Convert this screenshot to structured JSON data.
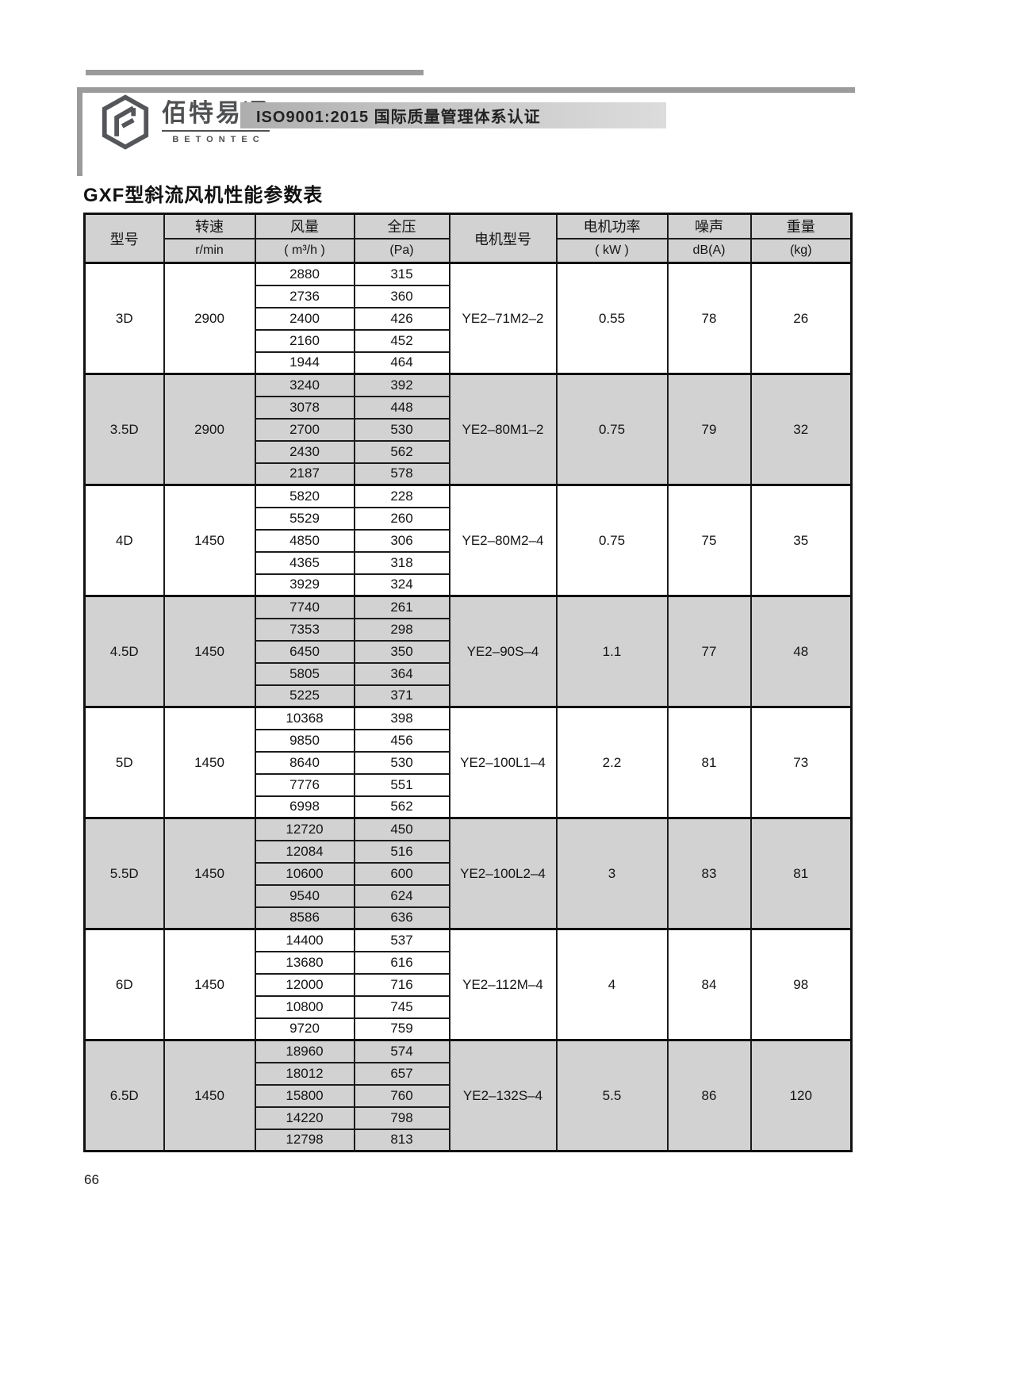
{
  "brand": {
    "name_cn": "佰特易通",
    "name_en": "BETONTEC"
  },
  "banner": {
    "text": "ISO9001:2015 国际质量管理体系认证"
  },
  "document": {
    "title": "GXF型斜流风机性能参数表",
    "page_number": "66"
  },
  "colors": {
    "band_gray": "#d2d2d2",
    "header_gray": "#d2d2d2",
    "frame_gray": "#9b9b9b",
    "logo_gray": "#4f5052"
  },
  "table": {
    "header": {
      "model": "型号",
      "speed_label": "转速",
      "speed_unit": "r/min",
      "airflow_label": "风量",
      "airflow_unit": "( m³/h )",
      "pressure_label": "全压",
      "pressure_unit": "(Pa)",
      "motor_label": "电机型号",
      "power_label": "电机功率",
      "power_unit": "( kW )",
      "noise_label": "噪声",
      "noise_unit": "dB(A)",
      "weight_label": "重量",
      "weight_unit": "(kg)"
    },
    "groups": [
      {
        "model": "3D",
        "speed": "2900",
        "motor": "YE2–71M2–2",
        "power": "0.55",
        "noise": "78",
        "weight": "26",
        "rows": [
          [
            "2880",
            "315"
          ],
          [
            "2736",
            "360"
          ],
          [
            "2400",
            "426"
          ],
          [
            "2160",
            "452"
          ],
          [
            "1944",
            "464"
          ]
        ]
      },
      {
        "model": "3.5D",
        "speed": "2900",
        "motor": "YE2–80M1–2",
        "power": "0.75",
        "noise": "79",
        "weight": "32",
        "rows": [
          [
            "3240",
            "392"
          ],
          [
            "3078",
            "448"
          ],
          [
            "2700",
            "530"
          ],
          [
            "2430",
            "562"
          ],
          [
            "2187",
            "578"
          ]
        ]
      },
      {
        "model": "4D",
        "speed": "1450",
        "motor": "YE2–80M2–4",
        "power": "0.75",
        "noise": "75",
        "weight": "35",
        "rows": [
          [
            "5820",
            "228"
          ],
          [
            "5529",
            "260"
          ],
          [
            "4850",
            "306"
          ],
          [
            "4365",
            "318"
          ],
          [
            "3929",
            "324"
          ]
        ]
      },
      {
        "model": "4.5D",
        "speed": "1450",
        "motor": "YE2–90S–4",
        "power": "1.1",
        "noise": "77",
        "weight": "48",
        "rows": [
          [
            "7740",
            "261"
          ],
          [
            "7353",
            "298"
          ],
          [
            "6450",
            "350"
          ],
          [
            "5805",
            "364"
          ],
          [
            "5225",
            "371"
          ]
        ]
      },
      {
        "model": "5D",
        "speed": "1450",
        "motor": "YE2–100L1–4",
        "power": "2.2",
        "noise": "81",
        "weight": "73",
        "rows": [
          [
            "10368",
            "398"
          ],
          [
            "9850",
            "456"
          ],
          [
            "8640",
            "530"
          ],
          [
            "7776",
            "551"
          ],
          [
            "6998",
            "562"
          ]
        ]
      },
      {
        "model": "5.5D",
        "speed": "1450",
        "motor": "YE2–100L2–4",
        "power": "3",
        "noise": "83",
        "weight": "81",
        "rows": [
          [
            "12720",
            "450"
          ],
          [
            "12084",
            "516"
          ],
          [
            "10600",
            "600"
          ],
          [
            "9540",
            "624"
          ],
          [
            "8586",
            "636"
          ]
        ]
      },
      {
        "model": "6D",
        "speed": "1450",
        "motor": "YE2–112M–4",
        "power": "4",
        "noise": "84",
        "weight": "98",
        "rows": [
          [
            "14400",
            "537"
          ],
          [
            "13680",
            "616"
          ],
          [
            "12000",
            "716"
          ],
          [
            "10800",
            "745"
          ],
          [
            "9720",
            "759"
          ]
        ]
      },
      {
        "model": "6.5D",
        "speed": "1450",
        "motor": "YE2–132S–4",
        "power": "5.5",
        "noise": "86",
        "weight": "120",
        "rows": [
          [
            "18960",
            "574"
          ],
          [
            "18012",
            "657"
          ],
          [
            "15800",
            "760"
          ],
          [
            "14220",
            "798"
          ],
          [
            "12798",
            "813"
          ]
        ]
      }
    ]
  }
}
